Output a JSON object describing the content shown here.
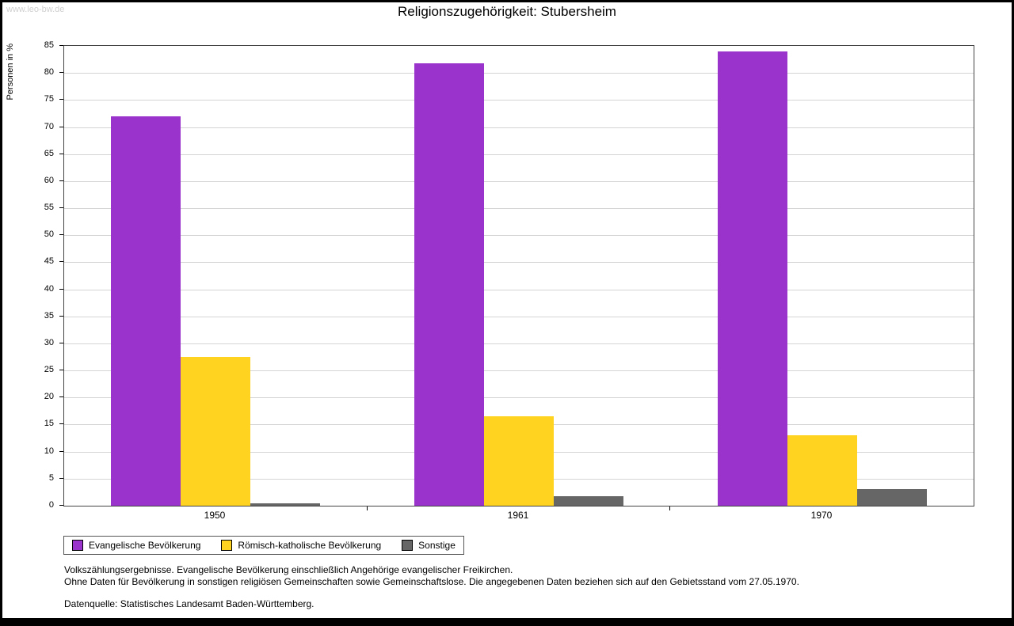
{
  "page": {
    "watermark": "www.leo-bw.de",
    "title": "Religionszugehörigkeit: Stubersheim"
  },
  "chart_data": {
    "type": "bar",
    "title": "Religionszugehörigkeit: Stubersheim",
    "xlabel": "",
    "ylabel": "Personen in %",
    "ylim": [
      0,
      85
    ],
    "ytick_step": 5,
    "grid": true,
    "legend_position": "bottom-left",
    "categories": [
      "1950",
      "1961",
      "1970"
    ],
    "series": [
      {
        "name": "Evangelische Bevölkerung",
        "color": "#9933CC",
        "values": [
          72.0,
          81.8,
          84.0
        ]
      },
      {
        "name": "Römisch-katholische Bevölkerung",
        "color": "#FFD320",
        "values": [
          27.5,
          16.6,
          13.0
        ]
      },
      {
        "name": "Sonstige",
        "color": "#666666",
        "values": [
          0.4,
          1.8,
          3.0
        ]
      }
    ]
  },
  "footnotes": {
    "line1": "Volkszählungsergebnisse. Evangelische Bevölkerung einschließlich Angehörige evangelischer Freikirchen.",
    "line2": "Ohne Daten für Bevölkerung in sonstigen religiösen Gemeinschaften sowie Gemeinschaftslose. Die angegebenen Daten beziehen sich auf den Gebietsstand vom 27.05.1970.",
    "source": "Datenquelle: Statistisches Landesamt Baden-Württemberg."
  }
}
